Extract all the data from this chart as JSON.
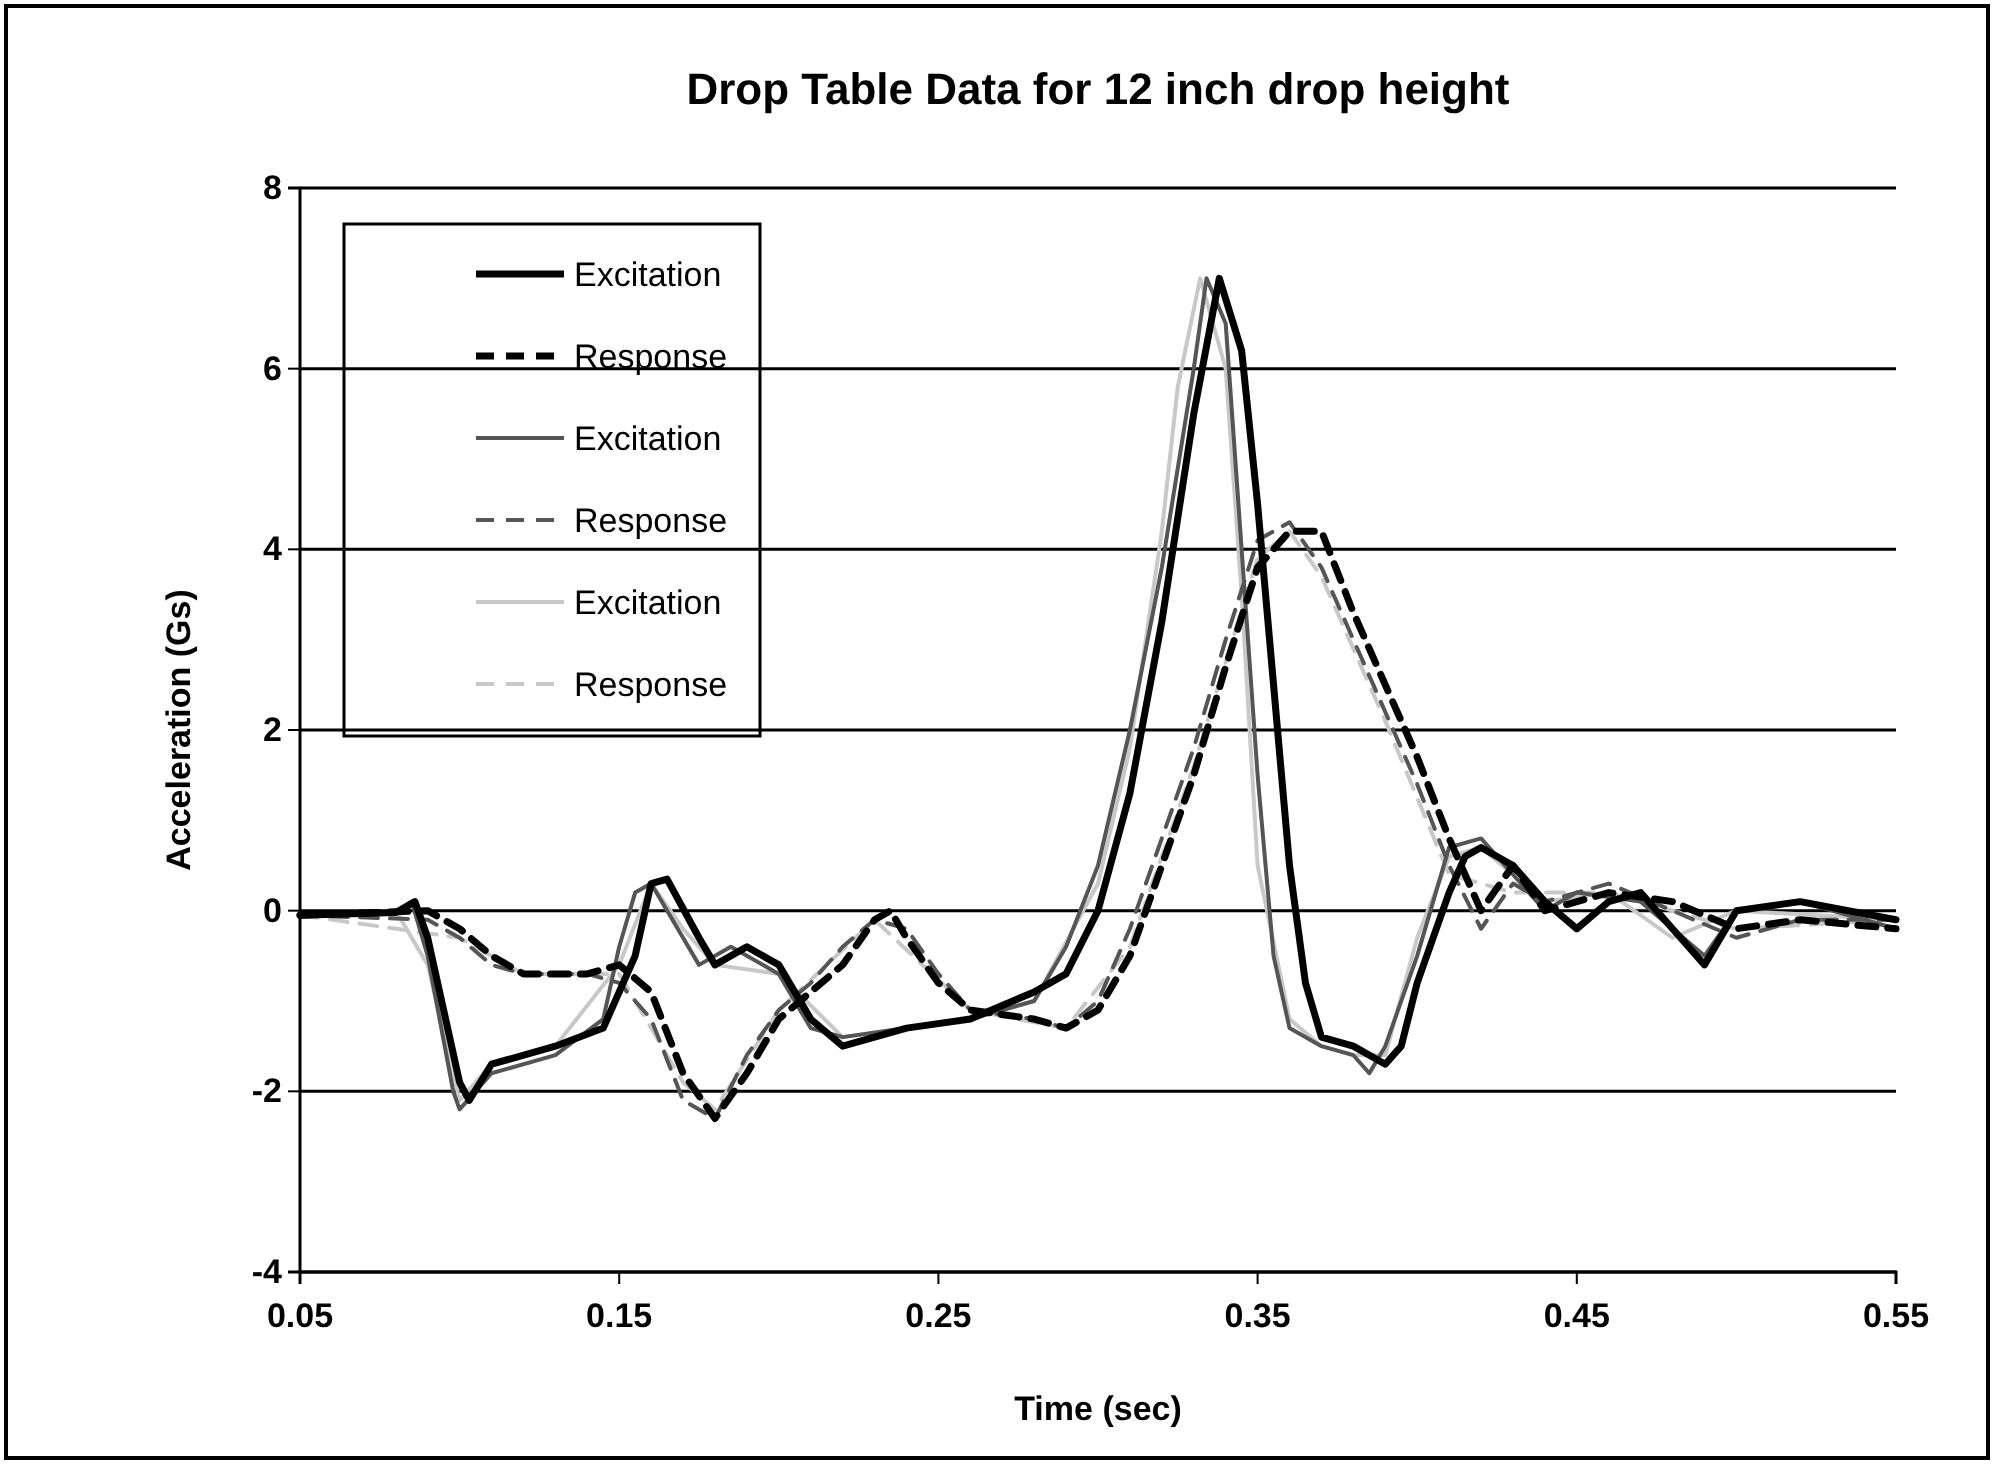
{
  "chart_data": {
    "type": "line",
    "title": "Drop Table Data for 12 inch drop height",
    "xlabel": "Time (sec)",
    "ylabel": "Acceleration (Gs)",
    "xlim": [
      0.05,
      0.55
    ],
    "xticks": [
      0.05,
      0.15,
      0.25,
      0.35,
      0.45,
      0.55
    ],
    "ylim": [
      -4,
      8
    ],
    "yticks": [
      -4,
      -2,
      0,
      2,
      4,
      6,
      8
    ],
    "grid": "y",
    "legend": "top left",
    "marker": "none",
    "series": [
      {
        "name": "Excitation",
        "color": "#000000",
        "line_style": "solid",
        "x": [
          0.05,
          0.08,
          0.086,
          0.09,
          0.1,
          0.103,
          0.11,
          0.13,
          0.145,
          0.155,
          0.16,
          0.165,
          0.175,
          0.18,
          0.19,
          0.2,
          0.21,
          0.22,
          0.24,
          0.26,
          0.28,
          0.29,
          0.3,
          0.31,
          0.32,
          0.33,
          0.338,
          0.345,
          0.35,
          0.355,
          0.36,
          0.365,
          0.37,
          0.38,
          0.39,
          0.395,
          0.4,
          0.41,
          0.415,
          0.42,
          0.43,
          0.44,
          0.45,
          0.46,
          0.47,
          0.48,
          0.49,
          0.5,
          0.52,
          0.55
        ],
        "values": [
          -0.05,
          -0.02,
          0.1,
          -0.3,
          -1.9,
          -2.1,
          -1.7,
          -1.5,
          -1.3,
          -0.5,
          0.3,
          0.35,
          -0.3,
          -0.6,
          -0.4,
          -0.6,
          -1.2,
          -1.5,
          -1.3,
          -1.2,
          -0.9,
          -0.7,
          0,
          1.3,
          3.2,
          5.5,
          7,
          6.2,
          4.5,
          2.5,
          0.5,
          -0.8,
          -1.4,
          -1.5,
          -1.7,
          -1.5,
          -0.8,
          0.2,
          0.6,
          0.7,
          0.5,
          0.1,
          -0.2,
          0.1,
          0.2,
          -0.2,
          -0.6,
          0,
          0.1,
          -0.1
        ]
      },
      {
        "name": "Response",
        "color": "#000000",
        "line_style": "dashed",
        "x": [
          0.05,
          0.09,
          0.1,
          0.11,
          0.12,
          0.14,
          0.15,
          0.16,
          0.17,
          0.18,
          0.19,
          0.2,
          0.21,
          0.22,
          0.23,
          0.235,
          0.24,
          0.25,
          0.26,
          0.28,
          0.29,
          0.3,
          0.31,
          0.32,
          0.33,
          0.34,
          0.35,
          0.36,
          0.37,
          0.38,
          0.39,
          0.4,
          0.41,
          0.42,
          0.43,
          0.44,
          0.46,
          0.48,
          0.5,
          0.52,
          0.55
        ],
        "values": [
          -0.05,
          0,
          -0.2,
          -0.5,
          -0.7,
          -0.7,
          -0.6,
          -0.9,
          -1.8,
          -2.3,
          -1.8,
          -1.2,
          -0.9,
          -0.6,
          -0.1,
          0,
          -0.3,
          -0.8,
          -1.1,
          -1.2,
          -1.3,
          -1.1,
          -0.5,
          0.5,
          1.5,
          2.7,
          3.8,
          4.2,
          4.2,
          3.3,
          2.5,
          1.7,
          0.8,
          0,
          0.5,
          0,
          0.2,
          0.1,
          -0.2,
          -0.1,
          -0.2
        ]
      },
      {
        "name": "Excitation",
        "color": "#555555",
        "line_style": "solid",
        "x": [
          0.05,
          0.08,
          0.085,
          0.09,
          0.098,
          0.1,
          0.11,
          0.13,
          0.145,
          0.15,
          0.155,
          0.16,
          0.17,
          0.175,
          0.185,
          0.2,
          0.21,
          0.22,
          0.24,
          0.26,
          0.28,
          0.29,
          0.3,
          0.31,
          0.32,
          0.33,
          0.334,
          0.34,
          0.345,
          0.35,
          0.355,
          0.36,
          0.37,
          0.38,
          0.385,
          0.39,
          0.4,
          0.41,
          0.42,
          0.43,
          0.44,
          0.45,
          0.47,
          0.49,
          0.5,
          0.52,
          0.55
        ],
        "values": [
          -0.05,
          -0.02,
          0.1,
          -0.5,
          -2,
          -2.2,
          -1.8,
          -1.6,
          -1.2,
          -0.4,
          0.2,
          0.3,
          -0.3,
          -0.6,
          -0.4,
          -0.7,
          -1.3,
          -1.4,
          -1.3,
          -1.2,
          -1,
          -0.4,
          0.5,
          2,
          3.8,
          6,
          7,
          6.5,
          4,
          1.5,
          -0.5,
          -1.3,
          -1.5,
          -1.6,
          -1.8,
          -1.5,
          -0.5,
          0.7,
          0.8,
          0.4,
          0,
          0.2,
          0.1,
          -0.5,
          0,
          0.1,
          -0.2
        ]
      },
      {
        "name": "Response",
        "color": "#555555",
        "line_style": "dashed",
        "x": [
          0.05,
          0.09,
          0.1,
          0.11,
          0.12,
          0.14,
          0.15,
          0.16,
          0.17,
          0.18,
          0.19,
          0.2,
          0.21,
          0.22,
          0.23,
          0.24,
          0.25,
          0.26,
          0.28,
          0.29,
          0.3,
          0.31,
          0.32,
          0.33,
          0.34,
          0.35,
          0.36,
          0.37,
          0.38,
          0.39,
          0.4,
          0.41,
          0.42,
          0.43,
          0.44,
          0.46,
          0.48,
          0.5,
          0.52,
          0.55
        ],
        "values": [
          -0.05,
          -0.1,
          -0.3,
          -0.6,
          -0.7,
          -0.7,
          -0.8,
          -1.2,
          -2.1,
          -2.3,
          -1.6,
          -1.1,
          -0.8,
          -0.4,
          -0.1,
          -0.2,
          -0.7,
          -1.1,
          -1.2,
          -1.3,
          -1,
          -0.2,
          0.8,
          1.8,
          3,
          4.1,
          4.3,
          3.8,
          3,
          2.2,
          1.4,
          0.5,
          -0.2,
          0.3,
          0.1,
          0.3,
          0,
          -0.3,
          -0.1,
          -0.1
        ]
      },
      {
        "name": "Excitation",
        "color": "#c8c8c8",
        "line_style": "solid",
        "x": [
          0.05,
          0.08,
          0.09,
          0.1,
          0.11,
          0.13,
          0.15,
          0.16,
          0.17,
          0.18,
          0.2,
          0.22,
          0.26,
          0.28,
          0.3,
          0.31,
          0.32,
          0.325,
          0.332,
          0.34,
          0.345,
          0.35,
          0.36,
          0.37,
          0.38,
          0.39,
          0.4,
          0.41,
          0.42,
          0.44,
          0.46,
          0.48,
          0.5,
          0.55
        ],
        "values": [
          -0.05,
          0,
          -0.6,
          -2.1,
          -1.7,
          -1.5,
          -0.6,
          0.3,
          -0.2,
          -0.6,
          -0.7,
          -1.4,
          -1.2,
          -1,
          0.3,
          1.8,
          4.2,
          5.8,
          7,
          6,
          3.5,
          0.5,
          -1.2,
          -1.5,
          -1.6,
          -1.6,
          -0.3,
          0.6,
          0.7,
          0.1,
          0.2,
          -0.3,
          0,
          -0.1
        ]
      },
      {
        "name": "Response",
        "color": "#c8c8c8",
        "line_style": "dashed",
        "x": [
          0.05,
          0.1,
          0.12,
          0.15,
          0.17,
          0.18,
          0.2,
          0.23,
          0.26,
          0.29,
          0.31,
          0.33,
          0.35,
          0.36,
          0.37,
          0.39,
          0.41,
          0.43,
          0.46,
          0.5,
          0.55
        ],
        "values": [
          -0.05,
          -0.3,
          -0.7,
          -0.7,
          -1.9,
          -2.2,
          -1.1,
          -0.1,
          -1.1,
          -1.3,
          -0.4,
          1.6,
          3.9,
          4.2,
          3.7,
          2.1,
          0.4,
          0.2,
          0.2,
          -0.2,
          -0.1
        ]
      }
    ]
  }
}
